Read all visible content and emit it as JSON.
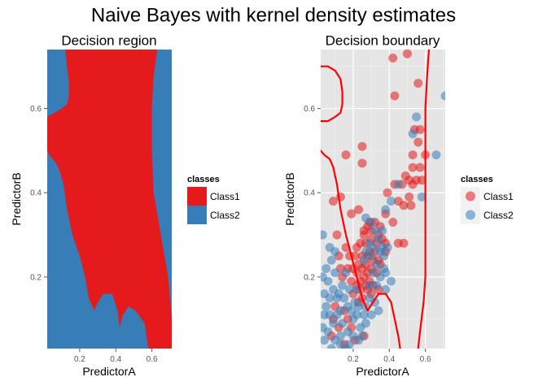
{
  "title": "Naive Bayes with kernel density estimates",
  "colors": {
    "class1": "#E41A1C",
    "class2": "#377EB8",
    "panel_bg": "#E5E5E5",
    "grid": "#FFFFFF",
    "boundary": "#FF0000"
  },
  "legend": {
    "title": "classes",
    "items": [
      "Class1",
      "Class2"
    ]
  },
  "chart_data": [
    {
      "type": "heatmap",
      "title": "Decision region",
      "xlabel": "PredictorA",
      "ylabel": "PredictorB",
      "xlim": [
        0.02,
        0.71
      ],
      "ylim": [
        0.03,
        0.74
      ],
      "xticks": [
        0.2,
        0.4,
        0.6
      ],
      "yticks": [
        0.2,
        0.4,
        0.6
      ],
      "background_class": "Class2",
      "regions": [
        {
          "class": "Class1",
          "outline": [
            [
              0.12,
              0.74
            ],
            [
              0.63,
              0.74
            ],
            [
              0.61,
              0.68
            ],
            [
              0.6,
              0.6
            ],
            [
              0.6,
              0.5
            ],
            [
              0.61,
              0.4
            ],
            [
              0.63,
              0.35
            ],
            [
              0.65,
              0.3
            ],
            [
              0.67,
              0.25
            ],
            [
              0.69,
              0.2
            ],
            [
              0.7,
              0.15
            ],
            [
              0.71,
              0.1
            ],
            [
              0.71,
              0.03
            ],
            [
              0.58,
              0.03
            ],
            [
              0.56,
              0.09
            ],
            [
              0.51,
              0.12
            ],
            [
              0.47,
              0.13
            ],
            [
              0.44,
              0.11
            ],
            [
              0.42,
              0.08
            ],
            [
              0.41,
              0.12
            ],
            [
              0.38,
              0.16
            ],
            [
              0.33,
              0.16
            ],
            [
              0.3,
              0.14
            ],
            [
              0.28,
              0.12
            ],
            [
              0.25,
              0.15
            ],
            [
              0.23,
              0.2
            ],
            [
              0.2,
              0.25
            ],
            [
              0.16,
              0.3
            ],
            [
              0.13,
              0.36
            ],
            [
              0.11,
              0.42
            ],
            [
              0.09,
              0.45
            ],
            [
              0.07,
              0.47
            ],
            [
              0.05,
              0.48
            ],
            [
              0.03,
              0.49
            ],
            [
              0.02,
              0.5
            ],
            [
              0.02,
              0.58
            ],
            [
              0.06,
              0.59
            ],
            [
              0.1,
              0.6
            ],
            [
              0.13,
              0.61
            ],
            [
              0.14,
              0.63
            ],
            [
              0.14,
              0.66
            ],
            [
              0.13,
              0.7
            ],
            [
              0.12,
              0.74
            ]
          ]
        }
      ]
    },
    {
      "type": "scatter",
      "title": "Decision boundary",
      "xlabel": "PredictorA",
      "ylabel": "PredictorB",
      "xlim": [
        0.02,
        0.71
      ],
      "ylim": [
        0.03,
        0.74
      ],
      "xticks": [
        0.2,
        0.4,
        0.6
      ],
      "yticks": [
        0.2,
        0.4,
        0.6
      ],
      "series": [
        {
          "name": "Class1",
          "points": [
            [
              0.5,
              0.73
            ],
            [
              0.42,
              0.72
            ],
            [
              0.56,
              0.66
            ],
            [
              0.43,
              0.63
            ],
            [
              0.54,
              0.55
            ],
            [
              0.57,
              0.55
            ],
            [
              0.56,
              0.52
            ],
            [
              0.53,
              0.49
            ],
            [
              0.6,
              0.49
            ],
            [
              0.57,
              0.46
            ],
            [
              0.53,
              0.46
            ],
            [
              0.49,
              0.44
            ],
            [
              0.25,
              0.51
            ],
            [
              0.16,
              0.49
            ],
            [
              0.25,
              0.47
            ],
            [
              0.58,
              0.43
            ],
            [
              0.55,
              0.43
            ],
            [
              0.51,
              0.43
            ],
            [
              0.47,
              0.42
            ],
            [
              0.43,
              0.42
            ],
            [
              0.53,
              0.42
            ],
            [
              0.39,
              0.4
            ],
            [
              0.51,
              0.39
            ],
            [
              0.52,
              0.37
            ],
            [
              0.48,
              0.37
            ],
            [
              0.09,
              0.38
            ],
            [
              0.13,
              0.39
            ],
            [
              0.45,
              0.38
            ],
            [
              0.23,
              0.36
            ],
            [
              0.19,
              0.35
            ],
            [
              0.38,
              0.35
            ],
            [
              0.32,
              0.33
            ],
            [
              0.28,
              0.32
            ],
            [
              0.35,
              0.32
            ],
            [
              0.42,
              0.33
            ],
            [
              0.3,
              0.31
            ],
            [
              0.26,
              0.3
            ],
            [
              0.34,
              0.3
            ],
            [
              0.3,
              0.29
            ],
            [
              0.27,
              0.28
            ],
            [
              0.24,
              0.28
            ],
            [
              0.33,
              0.28
            ],
            [
              0.38,
              0.28
            ],
            [
              0.45,
              0.28
            ],
            [
              0.48,
              0.28
            ],
            [
              0.22,
              0.27
            ],
            [
              0.29,
              0.26
            ],
            [
              0.32,
              0.26
            ],
            [
              0.28,
              0.25
            ],
            [
              0.25,
              0.25
            ],
            [
              0.31,
              0.24
            ],
            [
              0.34,
              0.24
            ],
            [
              0.27,
              0.23
            ],
            [
              0.23,
              0.23
            ],
            [
              0.2,
              0.22
            ],
            [
              0.25,
              0.22
            ],
            [
              0.3,
              0.22
            ],
            [
              0.28,
              0.21
            ],
            [
              0.33,
              0.21
            ],
            [
              0.35,
              0.23
            ],
            [
              0.22,
              0.21
            ],
            [
              0.26,
              0.2
            ],
            [
              0.24,
              0.19
            ],
            [
              0.29,
              0.19
            ],
            [
              0.19,
              0.19
            ],
            [
              0.27,
              0.18
            ],
            [
              0.31,
              0.18
            ],
            [
              0.22,
              0.18
            ],
            [
              0.24,
              0.17
            ],
            [
              0.28,
              0.17
            ],
            [
              0.3,
              0.16
            ],
            [
              0.34,
              0.17
            ],
            [
              0.25,
              0.15
            ],
            [
              0.11,
              0.3
            ],
            [
              0.12,
              0.25
            ],
            [
              0.14,
              0.2
            ],
            [
              0.17,
              0.22
            ],
            [
              0.21,
              0.25
            ],
            [
              0.26,
              0.31
            ],
            [
              0.29,
              0.33
            ],
            [
              0.36,
              0.29
            ],
            [
              0.38,
              0.26
            ],
            [
              0.18,
              0.25
            ],
            [
              0.16,
              0.27
            ],
            [
              0.13,
              0.22
            ],
            [
              0.2,
              0.16
            ],
            [
              0.23,
              0.14
            ],
            [
              0.1,
              0.13
            ],
            [
              0.09,
              0.1
            ],
            [
              0.15,
              0.12
            ],
            [
              0.17,
              0.1
            ],
            [
              0.19,
              0.08
            ],
            [
              0.12,
              0.08
            ],
            [
              0.08,
              0.06
            ],
            [
              0.21,
              0.05
            ],
            [
              0.26,
              0.06
            ],
            [
              0.15,
              0.04
            ]
          ]
        },
        {
          "name": "Class2",
          "points": [
            [
              0.71,
              0.63
            ],
            [
              0.55,
              0.58
            ],
            [
              0.53,
              0.54
            ],
            [
              0.66,
              0.49
            ],
            [
              0.45,
              0.42
            ],
            [
              0.58,
              0.39
            ],
            [
              0.41,
              0.38
            ],
            [
              0.38,
              0.36
            ],
            [
              0.27,
              0.34
            ],
            [
              0.3,
              0.33
            ],
            [
              0.32,
              0.31
            ],
            [
              0.36,
              0.31
            ],
            [
              0.34,
              0.29
            ],
            [
              0.29,
              0.28
            ],
            [
              0.31,
              0.27
            ],
            [
              0.36,
              0.27
            ],
            [
              0.27,
              0.26
            ],
            [
              0.35,
              0.26
            ],
            [
              0.39,
              0.27
            ],
            [
              0.37,
              0.25
            ],
            [
              0.3,
              0.25
            ],
            [
              0.26,
              0.24
            ],
            [
              0.33,
              0.23
            ],
            [
              0.37,
              0.22
            ],
            [
              0.31,
              0.21
            ],
            [
              0.38,
              0.21
            ],
            [
              0.35,
              0.2
            ],
            [
              0.33,
              0.18
            ],
            [
              0.29,
              0.18
            ],
            [
              0.41,
              0.19
            ],
            [
              0.38,
              0.17
            ],
            [
              0.29,
              0.15
            ],
            [
              0.32,
              0.14
            ],
            [
              0.27,
              0.13
            ],
            [
              0.23,
              0.13
            ],
            [
              0.26,
              0.11
            ],
            [
              0.3,
              0.11
            ],
            [
              0.34,
              0.12
            ],
            [
              0.22,
              0.11
            ],
            [
              0.19,
              0.12
            ],
            [
              0.17,
              0.13
            ],
            [
              0.21,
              0.14
            ],
            [
              0.15,
              0.15
            ],
            [
              0.12,
              0.16
            ],
            [
              0.09,
              0.17
            ],
            [
              0.07,
              0.15
            ],
            [
              0.05,
              0.13
            ],
            [
              0.04,
              0.16
            ],
            [
              0.06,
              0.19
            ],
            [
              0.1,
              0.21
            ],
            [
              0.08,
              0.24
            ],
            [
              0.05,
              0.22
            ],
            [
              0.03,
              0.2
            ],
            [
              0.04,
              0.11
            ],
            [
              0.07,
              0.11
            ],
            [
              0.09,
              0.09
            ],
            [
              0.11,
              0.11
            ],
            [
              0.13,
              0.12
            ],
            [
              0.14,
              0.09
            ],
            [
              0.17,
              0.07
            ],
            [
              0.2,
              0.1
            ],
            [
              0.24,
              0.08
            ],
            [
              0.27,
              0.09
            ],
            [
              0.23,
              0.05
            ],
            [
              0.18,
              0.04
            ],
            [
              0.13,
              0.06
            ],
            [
              0.1,
              0.05
            ],
            [
              0.06,
              0.07
            ],
            [
              0.03,
              0.08
            ],
            [
              0.04,
              0.05
            ],
            [
              0.08,
              0.03
            ],
            [
              0.16,
              0.03
            ],
            [
              0.2,
              0.06
            ],
            [
              0.25,
              0.06
            ],
            [
              0.13,
              0.04
            ],
            [
              0.03,
              0.3
            ],
            [
              0.07,
              0.27
            ],
            [
              0.1,
              0.26
            ],
            [
              0.16,
              0.21
            ],
            [
              0.18,
              0.17
            ],
            [
              0.22,
              0.17
            ],
            [
              0.14,
              0.18
            ],
            [
              0.11,
              0.15
            ]
          ]
        }
      ],
      "boundaries": [
        [
          [
            0.02,
            0.7
          ],
          [
            0.06,
            0.7
          ],
          [
            0.1,
            0.69
          ],
          [
            0.13,
            0.67
          ],
          [
            0.14,
            0.64
          ],
          [
            0.14,
            0.61
          ],
          [
            0.13,
            0.59
          ],
          [
            0.1,
            0.58
          ],
          [
            0.06,
            0.57
          ],
          [
            0.02,
            0.57
          ]
        ],
        [
          [
            0.02,
            0.5
          ],
          [
            0.04,
            0.49
          ],
          [
            0.07,
            0.48
          ],
          [
            0.09,
            0.46
          ],
          [
            0.1,
            0.44
          ],
          [
            0.11,
            0.42
          ],
          [
            0.13,
            0.36
          ],
          [
            0.16,
            0.3
          ],
          [
            0.19,
            0.25
          ],
          [
            0.22,
            0.2
          ],
          [
            0.25,
            0.15
          ],
          [
            0.28,
            0.12
          ],
          [
            0.31,
            0.14
          ],
          [
            0.34,
            0.16
          ],
          [
            0.38,
            0.16
          ],
          [
            0.41,
            0.14
          ],
          [
            0.43,
            0.1
          ],
          [
            0.45,
            0.06
          ],
          [
            0.46,
            0.03
          ]
        ],
        [
          [
            0.56,
            0.03
          ],
          [
            0.57,
            0.07
          ],
          [
            0.59,
            0.14
          ],
          [
            0.6,
            0.2
          ],
          [
            0.6,
            0.28
          ],
          [
            0.6,
            0.4
          ],
          [
            0.6,
            0.5
          ],
          [
            0.6,
            0.6
          ],
          [
            0.61,
            0.68
          ],
          [
            0.62,
            0.74
          ]
        ]
      ]
    }
  ]
}
